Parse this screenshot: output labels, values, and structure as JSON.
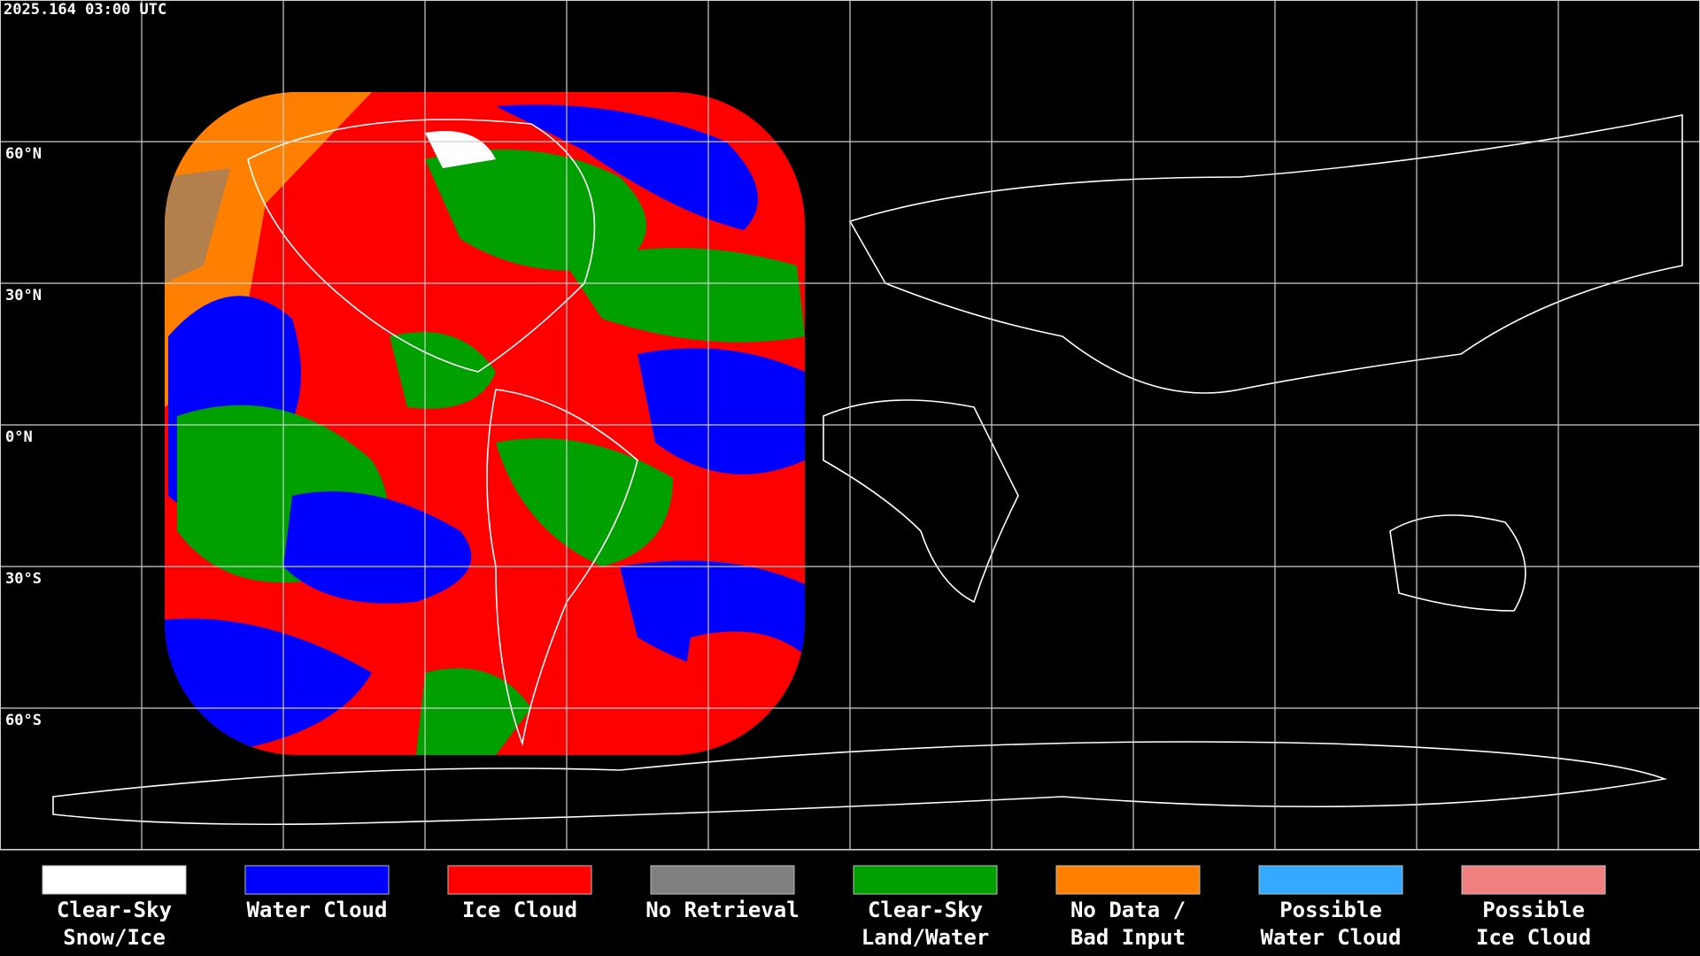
{
  "header": {
    "timestamp": "2025.164 03:00 UTC"
  },
  "map": {
    "latitude_labels": [
      "60°N",
      "30°N",
      "0°N",
      "30°S",
      "60°S"
    ]
  },
  "legend": {
    "items": [
      {
        "label": [
          "Clear-Sky",
          "Snow/Ice"
        ],
        "color": "#ffffff"
      },
      {
        "label": [
          "Water Cloud"
        ],
        "color": "#0000ff"
      },
      {
        "label": [
          "Ice Cloud"
        ],
        "color": "#ff0000"
      },
      {
        "label": [
          "No Retrieval"
        ],
        "color": "#808080"
      },
      {
        "label": [
          "Clear-Sky",
          "Land/Water"
        ],
        "color": "#00a000"
      },
      {
        "label": [
          "No Data /",
          "Bad Input"
        ],
        "color": "#ff8000"
      },
      {
        "label": [
          "Possible",
          "Water Cloud"
        ],
        "color": "#33aaff"
      },
      {
        "label": [
          "Possible",
          "Ice Cloud"
        ],
        "color": "#f08080"
      }
    ]
  }
}
